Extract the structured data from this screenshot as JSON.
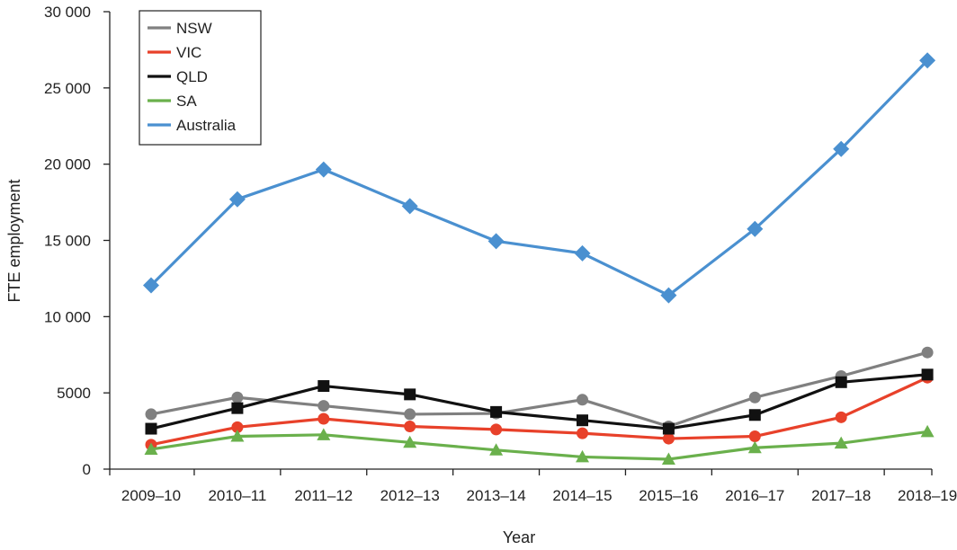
{
  "chart_data": {
    "type": "line",
    "title": "",
    "xlabel": "Year",
    "ylabel": "FTE employment",
    "ylim": [
      0,
      30000
    ],
    "yticks": [
      0,
      5000,
      10000,
      15000,
      20000,
      25000,
      30000
    ],
    "ytick_labels": [
      "0",
      "5000",
      "10 000",
      "15 000",
      "20 000",
      "25 000",
      "30 000"
    ],
    "categories": [
      "2009–10",
      "2010–11",
      "2011–12",
      "2012–13",
      "2013–14",
      "2014–15",
      "2015–16",
      "2016–17",
      "2017–18",
      "2018–19"
    ],
    "legend_position": "top-left",
    "series": [
      {
        "name": "NSW",
        "color": "#808080",
        "marker": "circle",
        "values": [
          3600,
          4700,
          4150,
          3600,
          3650,
          4550,
          2800,
          4700,
          6100,
          7650
        ]
      },
      {
        "name": "VIC",
        "color": "#e8412a",
        "marker": "circle",
        "values": [
          1600,
          2750,
          3300,
          2800,
          2600,
          2350,
          2000,
          2150,
          3400,
          6000
        ]
      },
      {
        "name": "QLD",
        "color": "#111111",
        "marker": "square",
        "values": [
          2650,
          4000,
          5450,
          4900,
          3750,
          3200,
          2650,
          3550,
          5700,
          6200
        ]
      },
      {
        "name": "SA",
        "color": "#6ab04c",
        "marker": "triangle",
        "values": [
          1300,
          2150,
          2250,
          1750,
          1250,
          800,
          650,
          1400,
          1700,
          2450
        ]
      },
      {
        "name": "Australia",
        "color": "#4a90d0",
        "marker": "diamond",
        "values": [
          12050,
          17700,
          19650,
          17250,
          14950,
          14150,
          11400,
          15750,
          21000,
          26800
        ]
      }
    ]
  }
}
